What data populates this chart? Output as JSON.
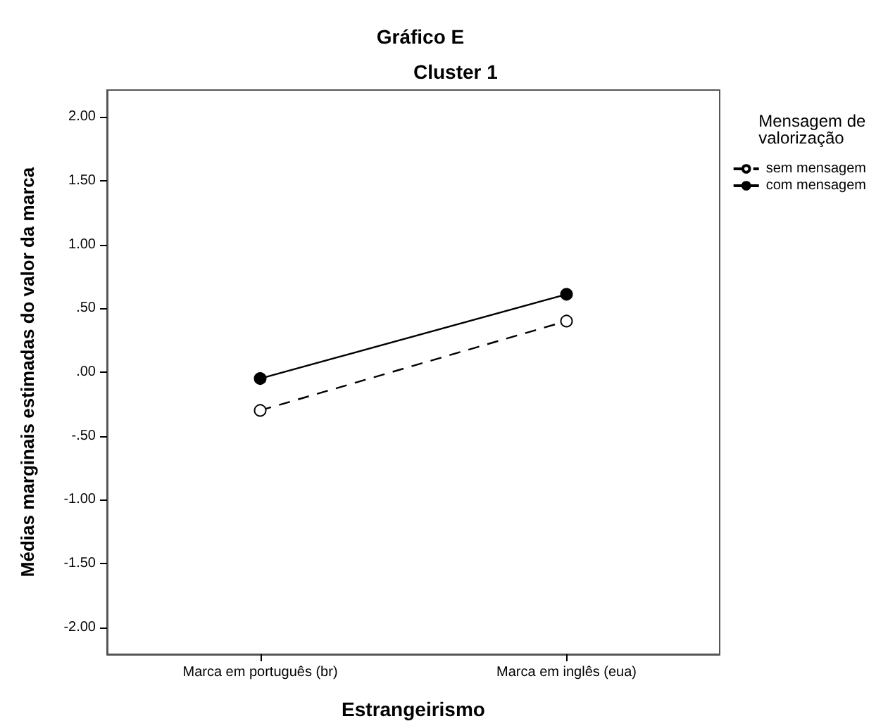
{
  "chart_data": {
    "type": "line",
    "title": "Gráfico E",
    "subtitle": "Cluster 1",
    "xlabel": "Estrangeirismo",
    "ylabel": "Médias marginais estimadas do valor da marca",
    "legend_title": "Mensagem de valorização",
    "categories": [
      "Marca em português (br)",
      "Marca em inglês (eua)"
    ],
    "series": [
      {
        "name": "sem mensagem",
        "color": "#000000",
        "values": [
          -0.3,
          0.4
        ],
        "line_style": "dashed",
        "marker": "circle"
      },
      {
        "name": "com mensagem",
        "color": "#000000",
        "values": [
          -0.05,
          0.61
        ],
        "line_style": "solid",
        "marker": "circle"
      }
    ],
    "ylim": [
      -2.21,
      2.21
    ],
    "yticks": [
      {
        "value": -2,
        "label": "-2.00"
      },
      {
        "value": -1.5,
        "label": "-1.50"
      },
      {
        "value": -1,
        "label": "-1.00"
      },
      {
        "value": -0.5,
        "label": "-.50"
      },
      {
        "value": 0,
        "label": ".00"
      },
      {
        "value": 0.5,
        "label": ".50"
      },
      {
        "value": 1,
        "label": "1.00"
      },
      {
        "value": 1.5,
        "label": "1.50"
      },
      {
        "value": 2,
        "label": "2.00"
      }
    ],
    "legend": "right"
  }
}
